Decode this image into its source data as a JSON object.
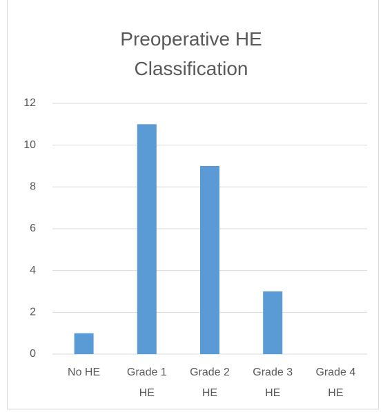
{
  "chart_data": {
    "type": "bar",
    "title": "Preoperative HE Classification",
    "categories": [
      "No HE",
      "Grade 1 HE",
      "Grade 2 HE",
      "Grade 3 HE",
      "Grade 4 HE"
    ],
    "values": [
      1,
      11,
      9,
      3,
      0
    ],
    "color": "#5b9bd5",
    "ylim": [
      0,
      12
    ],
    "yticks": [
      0,
      2,
      4,
      6,
      8,
      10,
      12
    ],
    "grid": true
  }
}
